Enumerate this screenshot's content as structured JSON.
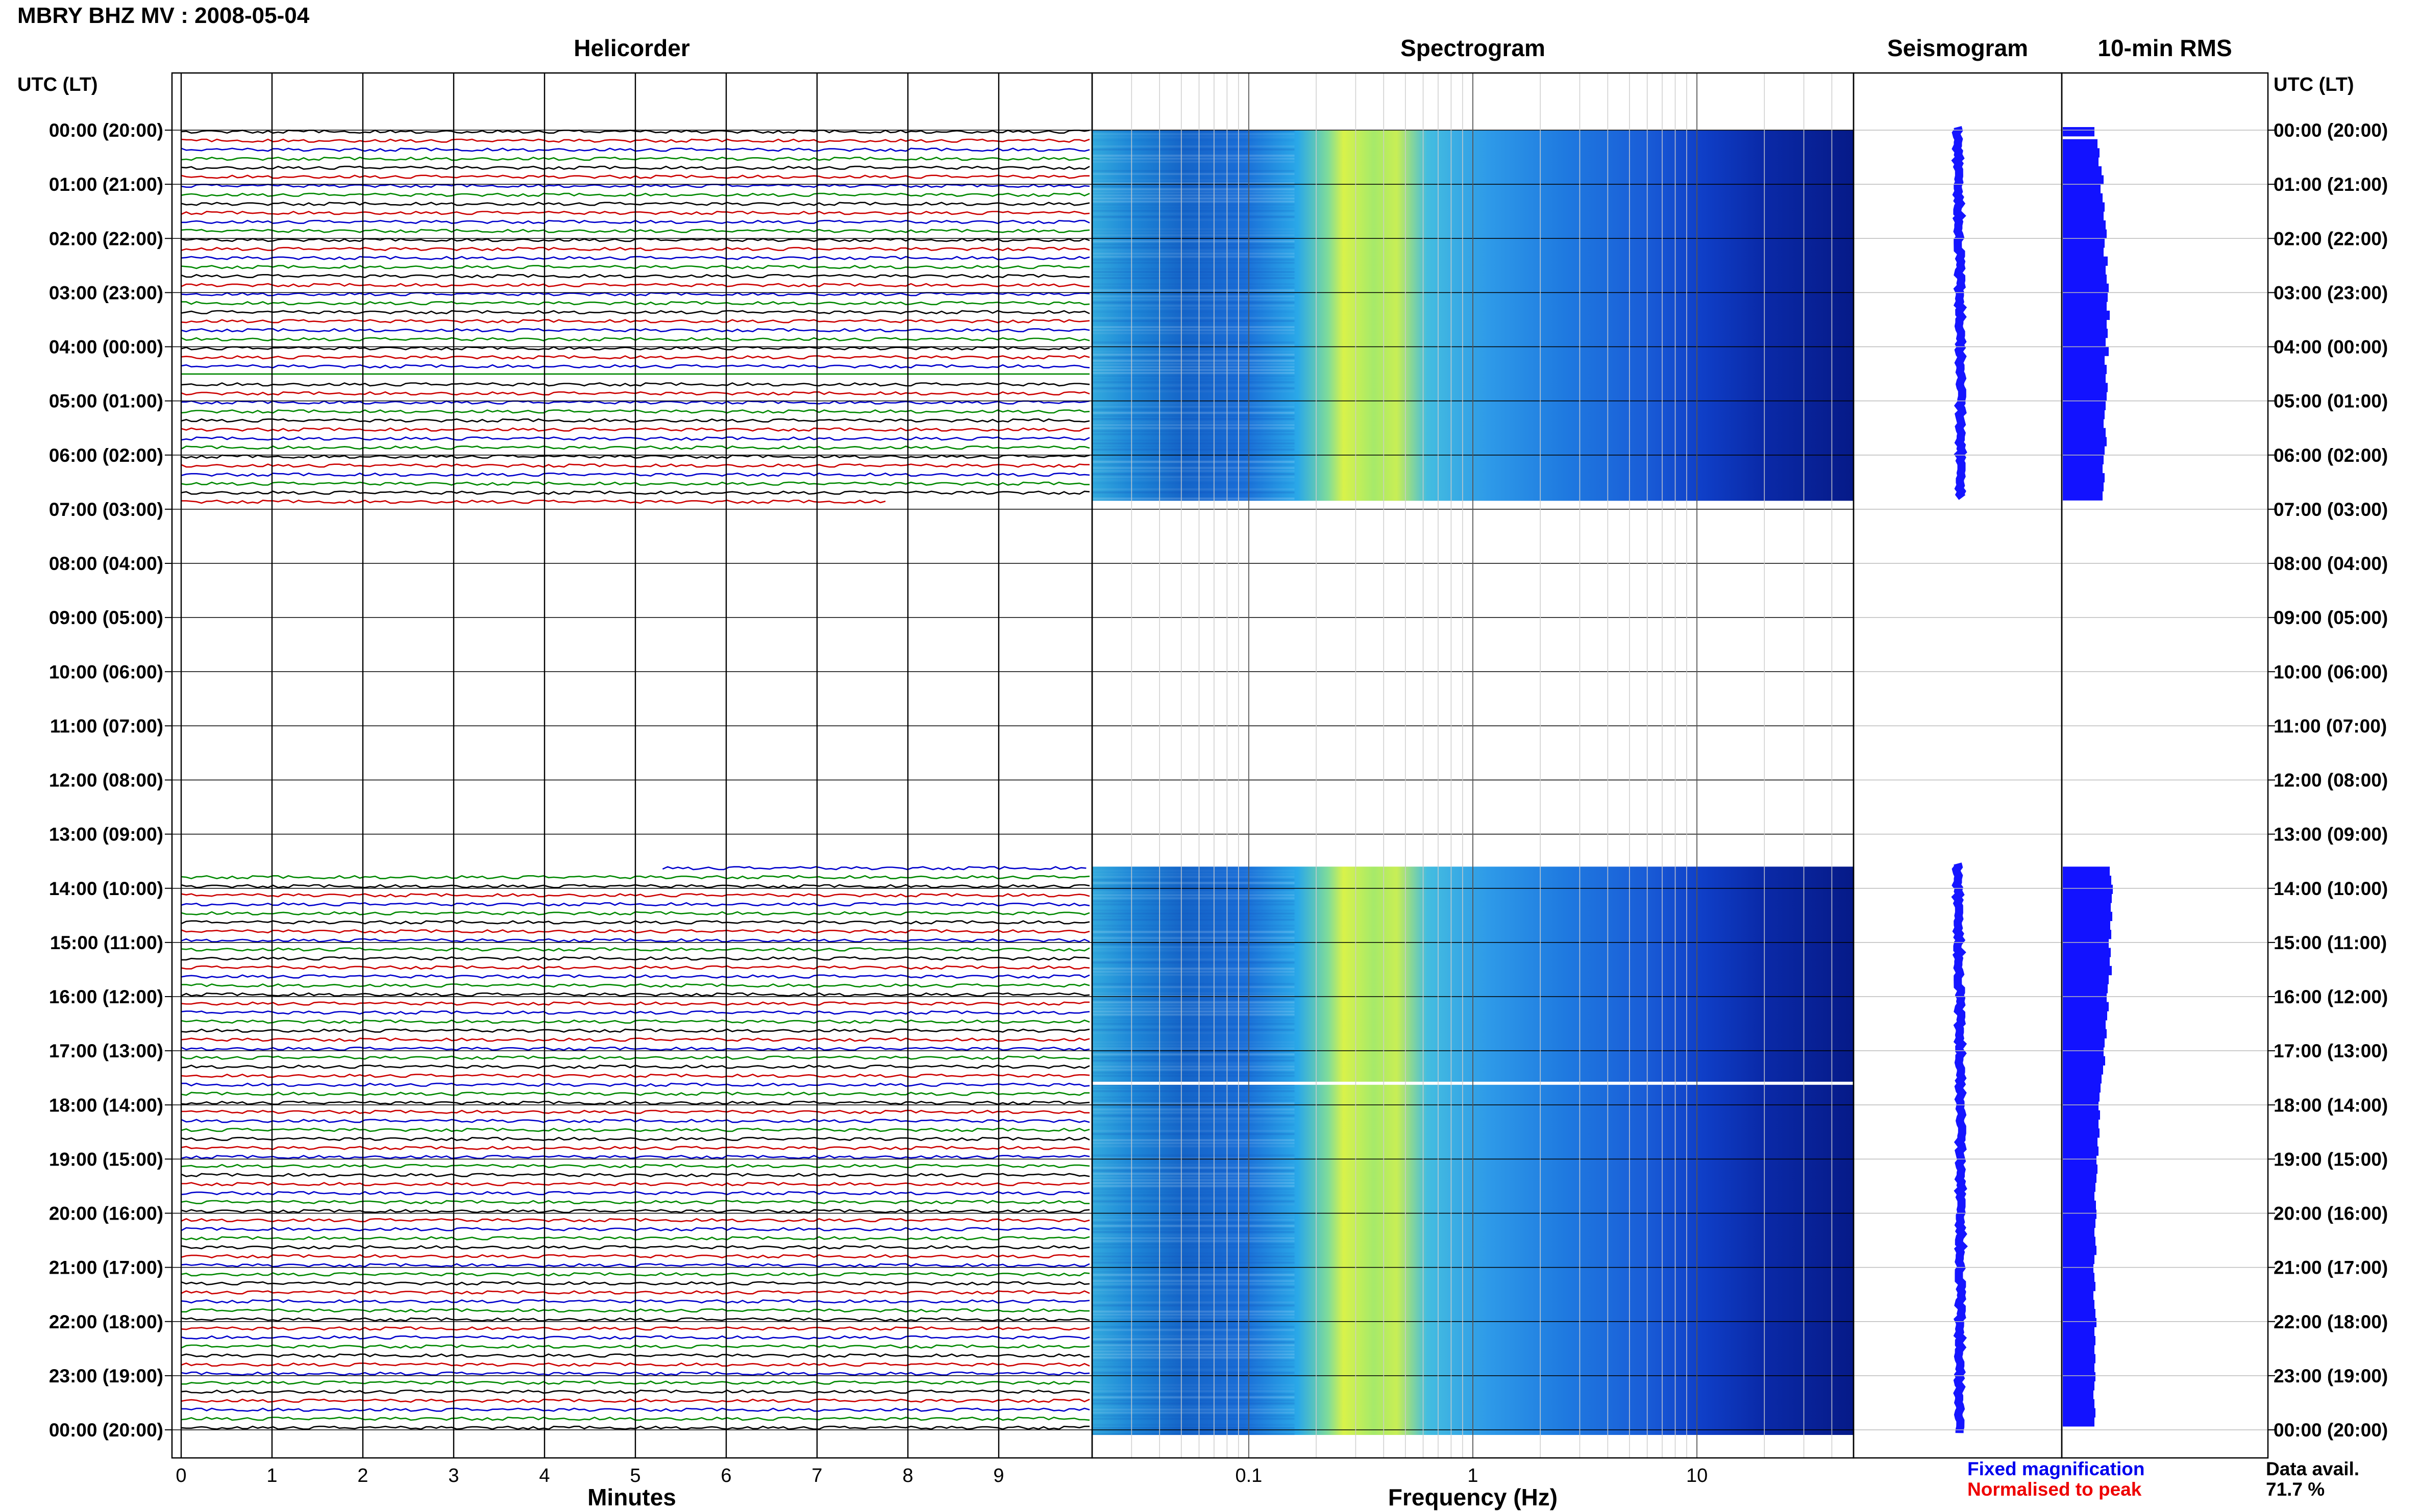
{
  "header": {
    "title": "MBRY BHZ MV : 2008-05-04"
  },
  "panels": {
    "helicorder": "Helicorder",
    "spectrogram": "Spectrogram",
    "seismogram": "Seismogram",
    "rms": "10-min RMS"
  },
  "axes": {
    "time_header_left": "UTC (LT)",
    "time_header_right": "UTC (LT)",
    "minutes_label": "Minutes",
    "frequency_label": "Frequency (Hz)"
  },
  "legend": {
    "fixed": "Fixed magnification",
    "normalised": "Normalised to peak",
    "data_avail_label": "Data avail.",
    "data_avail_value": "71.7 %"
  },
  "colors": {
    "fixed": "#0000ee",
    "normalised": "#ee0000",
    "trace_cycle": [
      "#000000",
      "#cc0000",
      "#0000cc",
      "#008800"
    ],
    "seismo": "#1515ff",
    "rms": "#1212ff"
  },
  "chart_data": {
    "type": "heatmap",
    "time_ticks": [
      "00:00 (20:00)",
      "01:00 (21:00)",
      "02:00 (22:00)",
      "03:00 (23:00)",
      "04:00 (00:00)",
      "05:00 (01:00)",
      "06:00 (02:00)",
      "07:00 (03:00)",
      "08:00 (04:00)",
      "09:00 (05:00)",
      "10:00 (06:00)",
      "11:00 (07:00)",
      "12:00 (08:00)",
      "13:00 (09:00)",
      "14:00 (10:00)",
      "15:00 (11:00)",
      "16:00 (12:00)",
      "17:00 (13:00)",
      "18:00 (14:00)",
      "19:00 (15:00)",
      "20:00 (16:00)",
      "21:00 (17:00)",
      "22:00 (18:00)",
      "23:00 (19:00)",
      "00:00 (20:00)"
    ],
    "minute_ticks": [
      "0",
      "1",
      "2",
      "3",
      "4",
      "5",
      "6",
      "7",
      "8",
      "9"
    ],
    "minutes_range": [
      0,
      10
    ],
    "frequency_ticks": [
      "0.1",
      "1",
      "10"
    ],
    "frequency_range_hz": [
      0.02,
      50
    ],
    "frequency_scale": "log",
    "hours_range": [
      0,
      24
    ],
    "data_segments_hours": [
      [
        0,
        6.75
      ],
      [
        13.6,
        24
      ]
    ],
    "data_gap_line_hours": 17.6,
    "spectral_peak_hz": [
      0.2,
      0.5
    ],
    "rms_levels": [
      0.62,
      0.68,
      0.72,
      0.7,
      0.76,
      0.8,
      0.74,
      0.78,
      0.82,
      0.8,
      0.84,
      0.86,
      0.82,
      0.8,
      0.88,
      0.84,
      0.86,
      0.9,
      0.88,
      0.86,
      0.92,
      0.86,
      0.88,
      0.84,
      0.9,
      0.82,
      0.86,
      0.84,
      0.88,
      0.86,
      0.84,
      0.82,
      0.8,
      0.84,
      0.86,
      0.82,
      0.8,
      0.78,
      0.82,
      0.8,
      0.78,
      0.92,
      0.95,
      0.98,
      0.96,
      0.94,
      0.97,
      0.93,
      0.95,
      0.9,
      0.94,
      0.92,
      0.96,
      0.9,
      0.88,
      0.86,
      0.9,
      0.87,
      0.84,
      0.86,
      0.82,
      0.8,
      0.83,
      0.79,
      0.76,
      0.74,
      0.72,
      0.7,
      0.73,
      0.7,
      0.72,
      0.68,
      0.7,
      0.66,
      0.68,
      0.66,
      0.64,
      0.62,
      0.65,
      0.66,
      0.64,
      0.62,
      0.64,
      0.66,
      0.62,
      0.6,
      0.62,
      0.64,
      0.6,
      0.62,
      0.64,
      0.66,
      0.62,
      0.64,
      0.62,
      0.64,
      0.62,
      0.64,
      0.62,
      0.6,
      0.62,
      0.64,
      0.62,
      0.64,
      0.62,
      0.6,
      0.62,
      0.64,
      0.62,
      0.6
    ]
  }
}
